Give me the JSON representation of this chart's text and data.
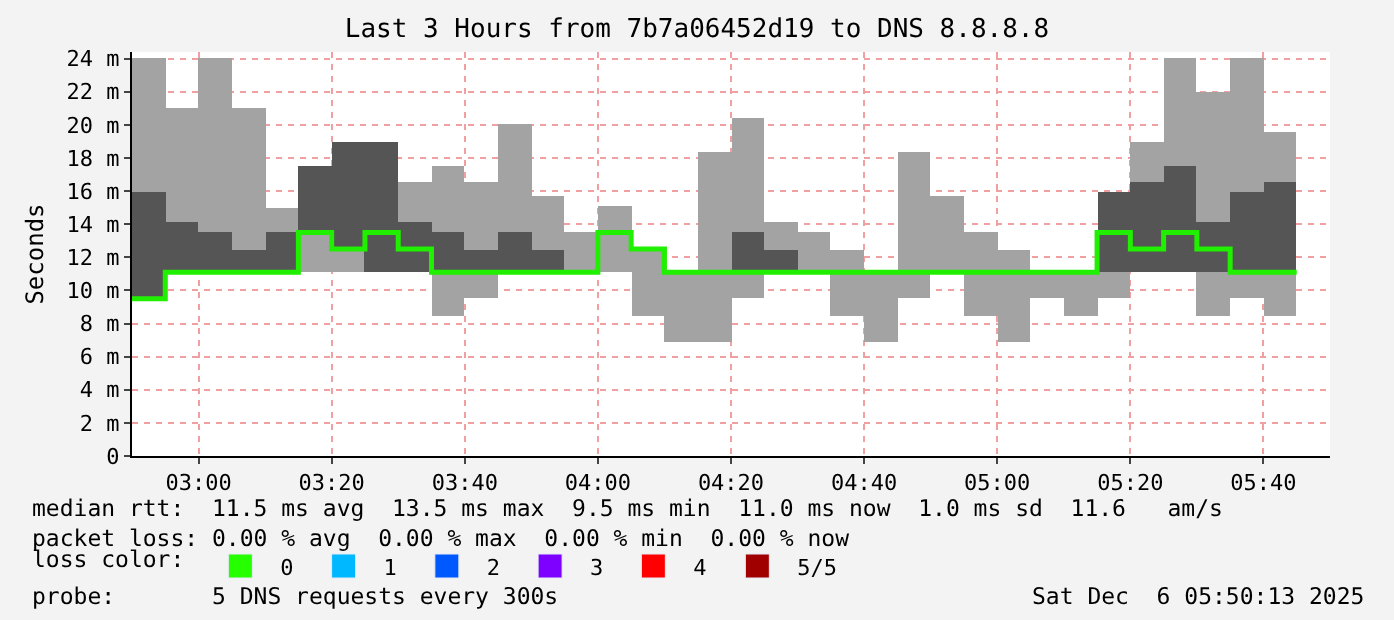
{
  "chart_data": {
    "type": "bar",
    "title": "Last 3 Hours from 7b7a06452d19 to DNS 8.8.8.8",
    "ylabel": "Seconds",
    "x": [
      "2025-12-06T02:50",
      "2025-12-06T02:55",
      "2025-12-06T03:00",
      "2025-12-06T03:05",
      "2025-12-06T03:10",
      "2025-12-06T03:15",
      "2025-12-06T03:20",
      "2025-12-06T03:25",
      "2025-12-06T03:30",
      "2025-12-06T03:35",
      "2025-12-06T03:40",
      "2025-12-06T03:45",
      "2025-12-06T03:50",
      "2025-12-06T03:55",
      "2025-12-06T04:00",
      "2025-12-06T04:05",
      "2025-12-06T04:10",
      "2025-12-06T04:15",
      "2025-12-06T04:20",
      "2025-12-06T04:25",
      "2025-12-06T04:30",
      "2025-12-06T04:35",
      "2025-12-06T04:40",
      "2025-12-06T04:45",
      "2025-12-06T04:50",
      "2025-12-06T04:55",
      "2025-12-06T05:00",
      "2025-12-06T05:05",
      "2025-12-06T05:10",
      "2025-12-06T05:15",
      "2025-12-06T05:20",
      "2025-12-06T05:25",
      "2025-12-06T05:30",
      "2025-12-06T05:35",
      "2025-12-06T05:40"
    ],
    "series": [
      {
        "color": "#a3a3a3",
        "base": [
          null,
          null,
          null,
          null,
          null,
          11.1,
          11.1,
          null,
          null,
          8.5,
          9.5,
          null,
          null,
          11.1,
          11.1,
          8.5,
          6.9,
          6.9,
          9.5,
          null,
          11.1,
          8.5,
          6.9,
          9.5,
          11.1,
          8.5,
          6.9,
          9.5,
          8.5,
          9.5,
          null,
          null,
          8.5,
          9.5,
          8.5
        ],
        "values": [
          null,
          null,
          null,
          null,
          null,
          2.4,
          1.4,
          null,
          null,
          2.6,
          1.6,
          null,
          null,
          2.4,
          4,
          4,
          4.2,
          11.5,
          1.6,
          null,
          2.4,
          4,
          4.2,
          8.9,
          4.6,
          5,
          5.6,
          1.6,
          2.6,
          1.6,
          null,
          null,
          2.6,
          1.6,
          2.6
        ]
      },
      {
        "color": "#555555",
        "base": [
          9.5,
          11.1,
          11.1,
          11.1,
          11.1,
          13.5,
          12.5,
          11.1,
          11.1,
          11.1,
          11.1,
          11.1,
          11.1,
          null,
          null,
          null,
          null,
          null,
          11.1,
          11.1,
          null,
          null,
          null,
          null,
          null,
          null,
          null,
          null,
          null,
          11.1,
          11.1,
          11.1,
          11.1,
          11.1,
          11.1
        ],
        "values": [
          6.4,
          3,
          2.4,
          1.4,
          2.4,
          4,
          6.5,
          7.9,
          3,
          2.4,
          1.4,
          2.4,
          1.4,
          null,
          null,
          null,
          null,
          null,
          2.4,
          1.4,
          null,
          null,
          null,
          null,
          null,
          null,
          null,
          null,
          null,
          4.8,
          5.4,
          6.4,
          3,
          4.8,
          5.4
        ]
      },
      {
        "color": "#a3a3a3",
        "base": [
          15.9,
          14.1,
          13.5,
          12.5,
          13.5,
          null,
          null,
          null,
          14.1,
          13.5,
          12.5,
          13.5,
          12.5,
          null,
          null,
          null,
          null,
          null,
          13.5,
          12.5,
          null,
          null,
          null,
          null,
          null,
          null,
          null,
          null,
          null,
          null,
          16.5,
          17.5,
          14.1,
          15.9,
          16.5
        ],
        "values": [
          8.1,
          6.9,
          10.5,
          8.5,
          1.5,
          null,
          null,
          null,
          2.4,
          4,
          4,
          6.5,
          3.2,
          null,
          null,
          null,
          null,
          null,
          6.9,
          1.6,
          null,
          null,
          null,
          null,
          null,
          null,
          null,
          null,
          null,
          null,
          2.5,
          6.5,
          7.9,
          8.1,
          3.1
        ]
      },
      {
        "type": "step",
        "color": "#20f000",
        "x": [
          "2025-12-06T02:50",
          "2025-12-06T02:55",
          "2025-12-06T03:00",
          "2025-12-06T03:05",
          "2025-12-06T03:10",
          "2025-12-06T03:15",
          "2025-12-06T03:20",
          "2025-12-06T03:25",
          "2025-12-06T03:30",
          "2025-12-06T03:35",
          "2025-12-06T03:40",
          "2025-12-06T03:45",
          "2025-12-06T03:50",
          "2025-12-06T03:55",
          "2025-12-06T04:00",
          "2025-12-06T04:05",
          "2025-12-06T04:10",
          "2025-12-06T04:15",
          "2025-12-06T04:20",
          "2025-12-06T04:25",
          "2025-12-06T04:30",
          "2025-12-06T04:35",
          "2025-12-06T04:40",
          "2025-12-06T04:45",
          "2025-12-06T04:50",
          "2025-12-06T04:55",
          "2025-12-06T05:00",
          "2025-12-06T05:05",
          "2025-12-06T05:10",
          "2025-12-06T05:15",
          "2025-12-06T05:20",
          "2025-12-06T05:25",
          "2025-12-06T05:30",
          "2025-12-06T05:35",
          "2025-12-06T05:40",
          "2025-12-06T05:45"
        ],
        "values": [
          9.5,
          11.1,
          11.1,
          11.1,
          11.1,
          13.5,
          12.5,
          13.5,
          12.5,
          11.1,
          11.1,
          11.1,
          11.1,
          11.1,
          13.5,
          12.5,
          11.1,
          11.1,
          11.1,
          11.1,
          11.1,
          11.1,
          11.1,
          11.1,
          11.1,
          11.1,
          11.1,
          11.1,
          11.1,
          13.5,
          12.5,
          13.5,
          12.5,
          11.1,
          11.1,
          11.1
        ]
      },
      {
        "name": "0",
        "color": "#26ff00",
        "values": [
          null,
          null,
          null,
          null,
          null,
          null,
          null,
          null,
          null,
          null,
          null,
          null,
          null,
          null,
          null,
          null,
          null,
          null,
          null,
          null,
          null,
          null,
          null,
          null,
          null,
          null,
          null,
          null,
          null,
          null,
          null,
          null,
          null,
          null,
          null
        ]
      },
      {
        "name": "1",
        "color": "#00b8ff",
        "values": [
          null,
          null,
          null,
          null,
          null,
          null,
          null,
          null,
          null,
          null,
          null,
          null,
          null,
          null,
          null,
          null,
          null,
          null,
          null,
          null,
          null,
          null,
          null,
          null,
          null,
          null,
          null,
          null,
          null,
          null,
          null,
          null,
          null,
          null,
          null
        ]
      },
      {
        "name": "2",
        "color": "#0059ff",
        "values": [
          null,
          null,
          null,
          null,
          null,
          null,
          null,
          null,
          null,
          null,
          null,
          null,
          null,
          null,
          null,
          null,
          null,
          null,
          null,
          null,
          null,
          null,
          null,
          null,
          null,
          null,
          null,
          null,
          null,
          null,
          null,
          null,
          null,
          null,
          null
        ]
      },
      {
        "name": "3",
        "color": "#7e00ff",
        "values": [
          null,
          null,
          null,
          null,
          null,
          null,
          null,
          null,
          null,
          null,
          null,
          null,
          null,
          null,
          null,
          null,
          null,
          null,
          null,
          null,
          null,
          null,
          null,
          null,
          null,
          null,
          null,
          null,
          null,
          null,
          null,
          null,
          null,
          null,
          null
        ]
      },
      {
        "name": "4",
        "color": "#ff0000",
        "values": [
          null,
          null,
          null,
          null,
          null,
          null,
          null,
          null,
          null,
          null,
          null,
          null,
          null,
          null,
          null,
          null,
          null,
          null,
          null,
          null,
          null,
          null,
          null,
          null,
          null,
          null,
          null,
          null,
          null,
          null,
          null,
          null,
          null,
          null,
          null
        ]
      },
      {
        "name": "5/5",
        "color": "#a10000",
        "values": [
          null,
          null,
          null,
          null,
          null,
          null,
          null,
          null,
          null,
          null,
          null,
          null,
          null,
          null,
          null,
          null,
          null,
          null,
          null,
          null,
          null,
          null,
          null,
          null,
          null,
          null,
          null,
          null,
          null,
          null,
          null,
          null,
          null,
          null,
          null
        ]
      }
    ],
    "xlim": [
      "2025-12-06T02:50",
      "2025-12-06T05:50"
    ],
    "xticks": [
      {
        "value": "2025-12-06T03:00",
        "label": "03:00"
      },
      {
        "value": "2025-12-06T03:20",
        "label": "03:20"
      },
      {
        "value": "2025-12-06T03:40",
        "label": "03:40"
      },
      {
        "value": "2025-12-06T04:00",
        "label": "04:00"
      },
      {
        "value": "2025-12-06T04:20",
        "label": "04:20"
      },
      {
        "value": "2025-12-06T04:40",
        "label": "04:40"
      },
      {
        "value": "2025-12-06T05:00",
        "label": "05:00"
      },
      {
        "value": "2025-12-06T05:20",
        "label": "05:20"
      },
      {
        "value": "2025-12-06T05:40",
        "label": "05:40"
      }
    ],
    "ylim": [
      0,
      24.4
    ],
    "yticks": [
      0,
      {
        "value": 2,
        "label": "2 m"
      },
      {
        "value": 4,
        "label": "4 m"
      },
      {
        "value": 6,
        "label": "6 m"
      },
      {
        "value": 8,
        "label": "8 m"
      },
      {
        "value": 10,
        "label": "10 m"
      },
      {
        "value": 12,
        "label": "12 m"
      },
      {
        "value": 14,
        "label": "14 m"
      },
      {
        "value": 16,
        "label": "16 m"
      },
      {
        "value": 18,
        "label": "18 m"
      },
      {
        "value": 20,
        "label": "20 m"
      },
      {
        "value": 22,
        "label": "22 m"
      },
      {
        "value": 24,
        "label": "24 m"
      }
    ],
    "grid": true,
    "legend": "bottom",
    "legend_title": "loss color:",
    "annotations": [
      "median rtt:  11.5 ms avg  13.5 ms max  9.5 ms min  11.0 ms now  1.0 ms sd  11.6   am/s",
      "packet loss: 0.00 % avg  0.00 % max  0.00 % min  0.00 % now",
      "probe:       5 DNS requests every 300s",
      "Sat Dec  6 05:50:13 2025"
    ]
  }
}
